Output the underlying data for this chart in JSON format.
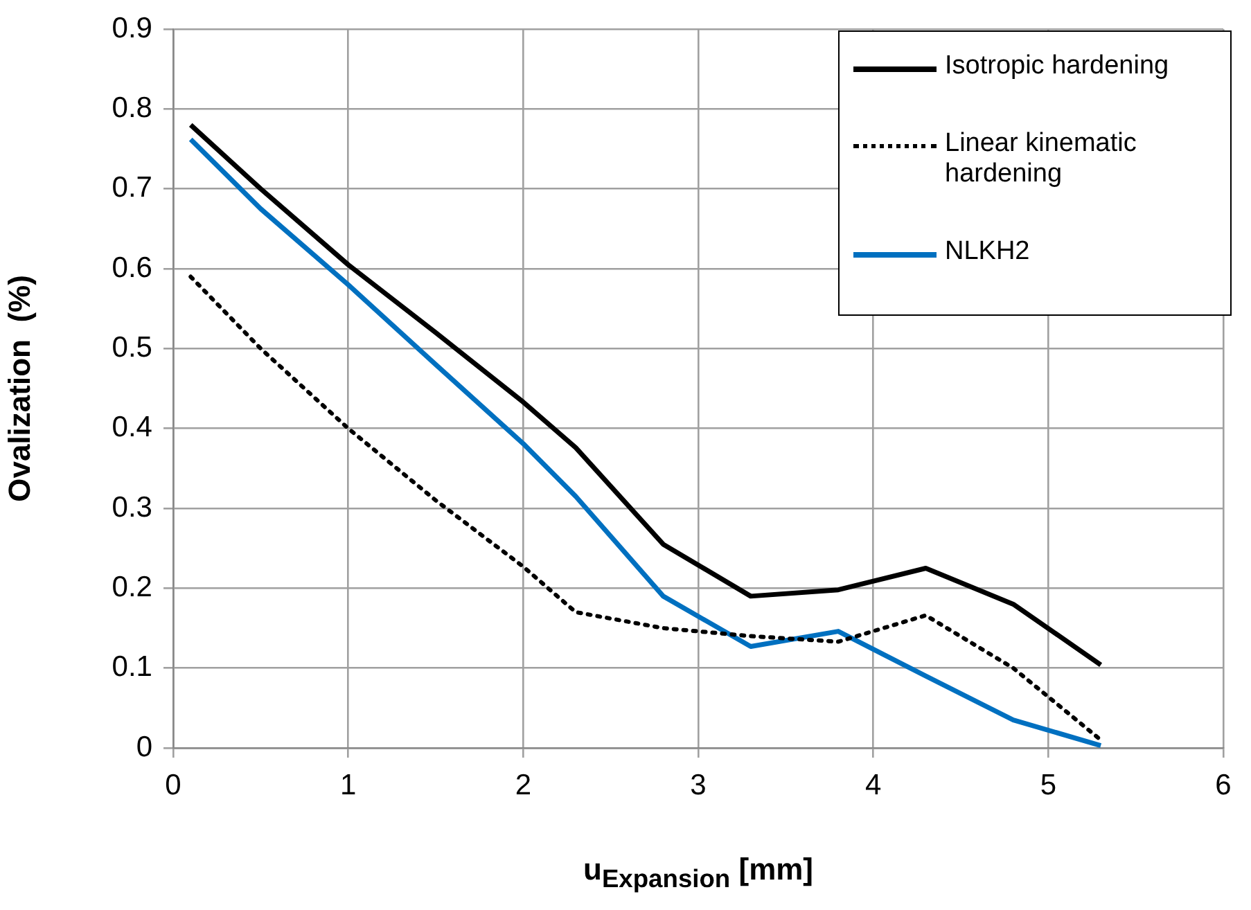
{
  "chart_data": {
    "type": "line",
    "xlabel": "u$_{Expansion}$ [mm]",
    "ylabel": "Ovalization  (%)",
    "x": [
      0.1,
      0.5,
      1,
      1.5,
      2,
      2.3,
      2.8,
      3.3,
      3.8,
      4.3,
      4.8,
      5.3
    ],
    "series": [
      {
        "name": "Isotropic hardening",
        "color": "#000000",
        "values": [
          0.78,
          0.7,
          0.605,
          0.52,
          0.433,
          0.376,
          0.255,
          0.19,
          0.198,
          0.225,
          0.18,
          0.104
        ]
      },
      {
        "name": "Linear kinematic hardening",
        "color": "#000000",
        "line_style": "dotted",
        "values": [
          0.59,
          0.5,
          0.4,
          0.31,
          0.227,
          0.17,
          0.15,
          0.14,
          0.133,
          0.166,
          0.1,
          0.01
        ]
      },
      {
        "name": "NLKH2",
        "color": "#0070c0",
        "values": [
          0.762,
          0.675,
          0.58,
          0.48,
          0.381,
          0.315,
          0.19,
          0.127,
          0.146,
          0.09,
          0.035,
          0.003
        ]
      }
    ],
    "xlim": [
      0,
      6
    ],
    "xticks": [
      0,
      1,
      2,
      3,
      4,
      5,
      6
    ],
    "ylim": [
      0,
      0.9
    ],
    "yticks": [
      0,
      0.1,
      0.2,
      0.3,
      0.4,
      0.5,
      0.6,
      0.7,
      0.8,
      0.9
    ],
    "grid": true,
    "legend": "top right",
    "marker": "none"
  }
}
